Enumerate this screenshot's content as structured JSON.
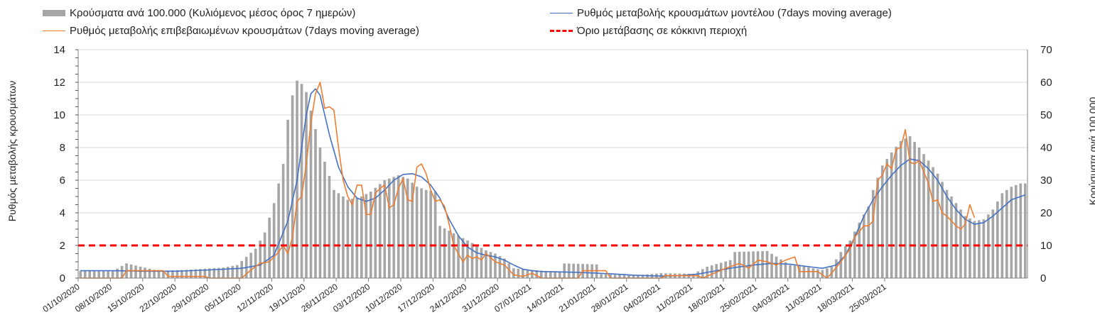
{
  "legend": {
    "bars": "Κρούσματα ανά 100.000 (Κυλιόμενος μέσος όρος 7 ημερών)",
    "model": "Ρυθμός μεταβολής κρουσμάτων μοντέλου (7days moving average)",
    "confirmed": "Ρυθμός μεταβολής επιβεβαιωμένων κρουσμάτων (7days moving average)",
    "threshold": "Όριο μετάβασης σε κόκκινη περιοχή"
  },
  "colors": {
    "bars": "#a6a6a6",
    "model": "#4472c4",
    "confirmed": "#ed7d31",
    "threshold": "#ff0000",
    "grid": "#d9d9d9"
  },
  "chart_data": {
    "type": "bar+line",
    "title": "",
    "ylabel_left": "Ρυθμός μεταβολής κρουσμάτων",
    "ylabel_right": "Κρούσματα ανά 100.000",
    "ylim_left": [
      0,
      14
    ],
    "yticks_left": [
      "0",
      "2",
      "4",
      "6",
      "8",
      "10",
      "12",
      "14"
    ],
    "ylim_right": [
      0,
      70
    ],
    "yticks_right": [
      "0",
      "10",
      "20",
      "30",
      "40",
      "50",
      "60",
      "70"
    ],
    "x_tick_labels": [
      "01/10/2020",
      "08/10/2020",
      "15/10/2020",
      "22/10/2020",
      "29/10/2020",
      "05/11/2020",
      "12/11/2020",
      "19/11/2020",
      "26/11/2020",
      "03/12/2020",
      "10/12/2020",
      "17/12/2020",
      "24/12/2020",
      "31/12/2020",
      "07/01/2021",
      "14/01/2021",
      "21/01/2021",
      "28/01/2021",
      "04/02/2021",
      "11/02/2021",
      "18/02/2021",
      "25/02/2021",
      "04/03/2021",
      "11/03/2021",
      "18/03/2021",
      "25/03/2021"
    ],
    "series": [
      {
        "name": "Κρούσματα ανά 100.000 (Κυλιόμενος μέσος όρος 7 ημερών)",
        "axis": "right",
        "kind": "bar",
        "points": [
          [
            0,
            2.2
          ],
          [
            7,
            2.1
          ],
          [
            10,
            4.5
          ],
          [
            17,
            2.2
          ],
          [
            24,
            2.6
          ],
          [
            31,
            3.2
          ],
          [
            34,
            4.0
          ],
          [
            36,
            6.5
          ],
          [
            38,
            9.0
          ],
          [
            40,
            14.0
          ],
          [
            42,
            23.0
          ],
          [
            44,
            35.0
          ],
          [
            45,
            48.5
          ],
          [
            46,
            56.0
          ],
          [
            47,
            60.5
          ],
          [
            48,
            59.5
          ],
          [
            49,
            57.0
          ],
          [
            52,
            40.0
          ],
          [
            55,
            27.0
          ],
          [
            58,
            24.0
          ],
          [
            61,
            25.0
          ],
          [
            63,
            26.5
          ],
          [
            66,
            30.0
          ],
          [
            69,
            31.5
          ],
          [
            71,
            30.5
          ],
          [
            73,
            28.0
          ],
          [
            75,
            27.0
          ],
          [
            77,
            26.5
          ],
          [
            78,
            16.0
          ],
          [
            80,
            14.5
          ],
          [
            82,
            13.0
          ],
          [
            84,
            11.5
          ],
          [
            86,
            10.0
          ],
          [
            88,
            8.5
          ],
          [
            90,
            7.5
          ],
          [
            92,
            6.0
          ],
          [
            94,
            3.0
          ],
          [
            96,
            2.7
          ],
          [
            99,
            2.4
          ],
          [
            101,
            2.2
          ],
          [
            104,
            2.1
          ],
          [
            105,
            4.5
          ],
          [
            112,
            4.2
          ],
          [
            113,
            1.2
          ],
          [
            120,
            0.8
          ],
          [
            126,
            1.5
          ],
          [
            133,
            1.3
          ],
          [
            136,
            3.5
          ],
          [
            141,
            5.5
          ],
          [
            142,
            8.0
          ],
          [
            149,
            8.3
          ],
          [
            154,
            4.0
          ],
          [
            157,
            3.5
          ],
          [
            161,
            2.5
          ],
          [
            163,
            3.5
          ],
          [
            165,
            8.0
          ],
          [
            167,
            11.5
          ],
          [
            169,
            17.0
          ],
          [
            171,
            22.0
          ],
          [
            172,
            27.0
          ],
          [
            174,
            34.5
          ],
          [
            176,
            38.5
          ],
          [
            178,
            42.0
          ],
          [
            180,
            43.5
          ],
          [
            182,
            40.0
          ],
          [
            184,
            36.0
          ],
          [
            186,
            32.0
          ],
          [
            188,
            27.0
          ],
          [
            190,
            23.0
          ],
          [
            192,
            19.0
          ],
          [
            194,
            17.5
          ],
          [
            196,
            18.0
          ],
          [
            198,
            21.0
          ],
          [
            200,
            26.0
          ],
          [
            202,
            28.0
          ],
          [
            204,
            29.0
          ],
          [
            205,
            29.0
          ]
        ]
      },
      {
        "name": "Ρυθμός μεταβολής κρουσμάτων μοντέλου (7days moving average)",
        "axis": "left",
        "kind": "line",
        "points": [
          [
            0,
            0.45
          ],
          [
            7,
            0.45
          ],
          [
            14,
            0.42
          ],
          [
            21,
            0.42
          ],
          [
            28,
            0.5
          ],
          [
            35,
            0.6
          ],
          [
            39,
            0.8
          ],
          [
            42,
            1.4
          ],
          [
            45,
            3.5
          ],
          [
            47,
            6.0
          ],
          [
            48,
            8.0
          ],
          [
            49,
            10.0
          ],
          [
            50,
            11.3
          ],
          [
            51,
            11.6
          ],
          [
            52,
            11.2
          ],
          [
            54,
            8.8
          ],
          [
            56,
            6.8
          ],
          [
            58,
            5.6
          ],
          [
            60,
            4.9
          ],
          [
            62,
            4.7
          ],
          [
            64,
            4.9
          ],
          [
            66,
            5.4
          ],
          [
            68,
            6.0
          ],
          [
            70,
            6.35
          ],
          [
            72,
            6.4
          ],
          [
            74,
            6.2
          ],
          [
            76,
            5.7
          ],
          [
            78,
            4.9
          ],
          [
            80,
            3.6
          ],
          [
            82,
            2.6
          ],
          [
            84,
            1.9
          ],
          [
            86,
            1.55
          ],
          [
            88,
            1.4
          ],
          [
            90,
            1.3
          ],
          [
            92,
            1.1
          ],
          [
            94,
            0.8
          ],
          [
            96,
            0.55
          ],
          [
            98,
            0.45
          ],
          [
            100,
            0.4
          ],
          [
            104,
            0.38
          ],
          [
            108,
            0.35
          ],
          [
            112,
            0.3
          ],
          [
            116,
            0.25
          ],
          [
            120,
            0.18
          ],
          [
            126,
            0.12
          ],
          [
            130,
            0.15
          ],
          [
            134,
            0.25
          ],
          [
            138,
            0.45
          ],
          [
            142,
            0.65
          ],
          [
            146,
            0.8
          ],
          [
            150,
            0.9
          ],
          [
            154,
            0.85
          ],
          [
            158,
            0.7
          ],
          [
            161,
            0.6
          ],
          [
            164,
            0.8
          ],
          [
            166,
            1.4
          ],
          [
            168,
            2.5
          ],
          [
            170,
            3.8
          ],
          [
            172,
            4.8
          ],
          [
            174,
            5.6
          ],
          [
            176,
            6.3
          ],
          [
            178,
            6.9
          ],
          [
            180,
            7.3
          ],
          [
            182,
            7.2
          ],
          [
            184,
            6.7
          ],
          [
            186,
            6.0
          ],
          [
            188,
            5.0
          ],
          [
            190,
            4.2
          ],
          [
            192,
            3.6
          ],
          [
            194,
            3.3
          ],
          [
            196,
            3.4
          ],
          [
            198,
            3.8
          ],
          [
            200,
            4.3
          ],
          [
            202,
            4.8
          ],
          [
            205,
            5.1
          ]
        ]
      },
      {
        "name": "Ρυθμός μεταβολής επιβεβαιωμένων κρουσμάτων (7days moving average)",
        "axis": "left",
        "kind": "line",
        "points": [
          [
            0,
            0.0
          ],
          [
            9,
            0.0
          ],
          [
            10,
            0.45
          ],
          [
            18,
            0.45
          ],
          [
            19,
            0.1
          ],
          [
            27,
            0.1
          ],
          [
            28,
            0.0
          ],
          [
            35,
            0.0
          ],
          [
            37,
            0.5
          ],
          [
            39,
            0.9
          ],
          [
            41,
            1.0
          ],
          [
            43,
            1.6
          ],
          [
            44,
            2.0
          ],
          [
            45,
            1.5
          ],
          [
            46,
            2.5
          ],
          [
            47,
            4.7
          ],
          [
            48,
            5.0
          ],
          [
            49,
            7.0
          ],
          [
            50,
            9.5
          ],
          [
            51,
            11.3
          ],
          [
            52,
            12.0
          ],
          [
            53,
            10.4
          ],
          [
            54,
            10.5
          ],
          [
            55,
            10.3
          ],
          [
            56,
            8.0
          ],
          [
            57,
            6.0
          ],
          [
            58,
            5.0
          ],
          [
            59,
            4.5
          ],
          [
            60,
            5.7
          ],
          [
            61,
            5.7
          ],
          [
            62,
            3.9
          ],
          [
            63,
            3.9
          ],
          [
            64,
            5.2
          ],
          [
            65,
            5.5
          ],
          [
            66,
            5.7
          ],
          [
            67,
            4.3
          ],
          [
            68,
            4.5
          ],
          [
            69,
            5.5
          ],
          [
            70,
            6.1
          ],
          [
            71,
            4.8
          ],
          [
            72,
            4.7
          ],
          [
            73,
            6.8
          ],
          [
            74,
            7.0
          ],
          [
            75,
            6.4
          ],
          [
            76,
            5.4
          ],
          [
            77,
            4.7
          ],
          [
            78,
            4.8
          ],
          [
            79,
            4.4
          ],
          [
            80,
            3.3
          ],
          [
            81,
            2.0
          ],
          [
            82,
            1.5
          ],
          [
            83,
            1.0
          ],
          [
            84,
            1.4
          ],
          [
            85,
            1.2
          ],
          [
            86,
            1.3
          ],
          [
            87,
            1.1
          ],
          [
            88,
            1.5
          ],
          [
            90,
            1.0
          ],
          [
            92,
            0.8
          ],
          [
            94,
            0.2
          ],
          [
            96,
            0.1
          ],
          [
            98,
            0.3
          ],
          [
            100,
            0.0
          ],
          [
            108,
            0.0
          ],
          [
            109,
            0.45
          ],
          [
            114,
            0.45
          ],
          [
            115,
            0.0
          ],
          [
            126,
            0.0
          ],
          [
            127,
            0.15
          ],
          [
            134,
            0.15
          ],
          [
            135,
            0.0
          ],
          [
            140,
            0.6
          ],
          [
            143,
            0.9
          ],
          [
            145,
            0.6
          ],
          [
            147,
            1.1
          ],
          [
            149,
            1.0
          ],
          [
            151,
            0.8
          ],
          [
            153,
            1.1
          ],
          [
            155,
            1.3
          ],
          [
            156,
            0.4
          ],
          [
            160,
            0.4
          ],
          [
            162,
            0.0
          ],
          [
            163,
            0.3
          ],
          [
            165,
            1.0
          ],
          [
            167,
            1.8
          ],
          [
            168,
            2.5
          ],
          [
            170,
            3.2
          ],
          [
            171,
            3.2
          ],
          [
            172,
            3.5
          ],
          [
            173,
            6.0
          ],
          [
            174,
            6.3
          ],
          [
            175,
            7.0
          ],
          [
            176,
            6.7
          ],
          [
            177,
            7.9
          ],
          [
            178,
            8.0
          ],
          [
            179,
            9.1
          ],
          [
            180,
            7.1
          ],
          [
            181,
            7.0
          ],
          [
            182,
            7.2
          ],
          [
            183,
            6.5
          ],
          [
            184,
            5.8
          ],
          [
            185,
            4.7
          ],
          [
            186,
            4.8
          ],
          [
            187,
            4.0
          ],
          [
            188,
            3.8
          ],
          [
            189,
            3.5
          ],
          [
            190,
            3.2
          ],
          [
            191,
            3.0
          ],
          [
            192,
            3.3
          ],
          [
            193,
            4.5
          ],
          [
            194,
            3.7
          ]
        ]
      },
      {
        "name": "Όριο μετάβασης σε κόκκινη περιοχή",
        "axis": "left",
        "kind": "line",
        "points": [
          [
            0,
            2
          ],
          [
            205,
            2
          ]
        ]
      }
    ]
  }
}
